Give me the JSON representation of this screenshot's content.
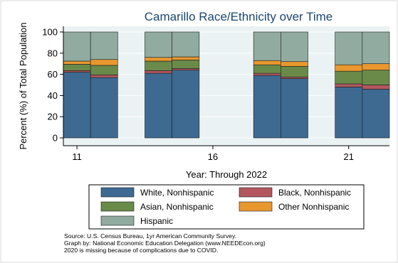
{
  "chart_data": {
    "type": "bar",
    "stacked": true,
    "title": "Camarillo Race/Ethnicity over Time",
    "xlabel": "Year: Through 2022",
    "ylabel": "Percent (%) of Total Population",
    "x": [
      11,
      12,
      14,
      15,
      18,
      19,
      21,
      22
    ],
    "xticks": [
      11,
      16,
      21
    ],
    "xlim": [
      10.5,
      22.5
    ],
    "ylim": [
      0,
      100
    ],
    "yticks": [
      0,
      20,
      40,
      60,
      80,
      100
    ],
    "grid": true,
    "legend_position": "bottom",
    "series": [
      {
        "name": "White, Nonhispanic",
        "color": "#3e6a92",
        "values": [
          62,
          57,
          61,
          64,
          59,
          56,
          48,
          46
        ]
      },
      {
        "name": "Black, Nonhispanic",
        "color": "#b3575f",
        "values": [
          1.5,
          2.5,
          2.5,
          1.5,
          2,
          1.5,
          3,
          4
        ]
      },
      {
        "name": "Asian, Nonhispanic",
        "color": "#6a8a4a",
        "values": [
          6,
          9,
          9,
          8,
          8,
          10,
          12,
          14
        ]
      },
      {
        "name": "Other Nonhispanic",
        "color": "#e8982e",
        "values": [
          3,
          5.5,
          3.5,
          3,
          4,
          4.5,
          6,
          6
        ]
      },
      {
        "name": "Hispanic",
        "color": "#91aba0",
        "values": [
          27.5,
          26,
          24,
          23.5,
          27,
          28,
          31,
          30
        ]
      }
    ]
  },
  "notes": [
    "Source:  U.S. Census Bureau, 1yr American Community Survey.",
    "Graph by: National Economic Education Delegation (www.NEEDEcon.org)",
    "2020 is missing because of complications due to COVID."
  ]
}
